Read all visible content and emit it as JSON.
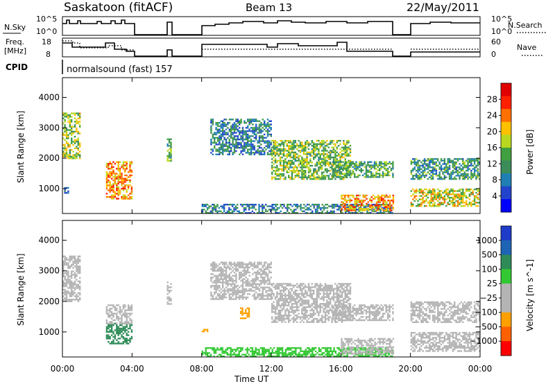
{
  "header": {
    "station": "Saskatoon (fitACF)",
    "beam": "Beam 13",
    "date": "22/May/2011"
  },
  "status_panels": {
    "nsky_label": "N.Sky",
    "nsky_ticks": [
      "10^5",
      "10^0"
    ],
    "nsearch_label": "N.Search",
    "nsearch_ticks": [
      "10^5",
      "10^0"
    ],
    "freq_label": "Freq.",
    "freq_unit": "[MHz]",
    "freq_ticks": [
      "18",
      "8"
    ],
    "nave_label": "Nave",
    "nave_ticks": [
      "60",
      "0"
    ],
    "cpid_label": "CPID",
    "cpid_value": "normalsound (fast) 157"
  },
  "colors": {
    "power_scale": [
      "#0000ff",
      "#2244cc",
      "#1f7fb4",
      "#3c8c5a",
      "#40a040",
      "#b8d820",
      "#ffc000",
      "#ff7000",
      "#ff2000",
      "#e00000"
    ],
    "velocity_scale": [
      "#1e3cc8",
      "#1e64b4",
      "#2e8b57",
      "#32c832",
      "#b4b4b4",
      "#b4b4b4",
      "#ffa000",
      "#ff6000",
      "#ff0000"
    ]
  },
  "chart_data": [
    {
      "type": "heatmap",
      "title": "",
      "quantity": "Power",
      "xlabel": "",
      "ylabel": "Slant Range [km]",
      "xlim_hours": [
        0,
        24
      ],
      "ylim": [
        180,
        4650
      ],
      "x_ticks": [
        "00:00",
        "04:00",
        "08:00",
        "12:00",
        "16:00",
        "20:00",
        "00:00"
      ],
      "y_ticks": [
        1000,
        2000,
        3000,
        4000
      ],
      "colorbar": {
        "label": "Power [dB]",
        "ticks": [
          "28",
          "24",
          "20",
          "16",
          "12",
          "8",
          "4"
        ],
        "range": [
          0,
          30
        ]
      },
      "echo_regions": [
        {
          "t_start": 0.0,
          "t_end": 1.0,
          "r_min": 2000,
          "r_max": 3500,
          "power": 16
        },
        {
          "t_start": 0.0,
          "t_end": 0.3,
          "r_min": 850,
          "r_max": 1050,
          "power": 6
        },
        {
          "t_start": 2.5,
          "t_end": 4.0,
          "r_min": 650,
          "r_max": 1900,
          "power": 22
        },
        {
          "t_start": 6.0,
          "t_end": 6.2,
          "r_min": 1900,
          "r_max": 2650,
          "power": 12
        },
        {
          "t_start": 8.0,
          "t_end": 19.0,
          "r_min": 200,
          "r_max": 500,
          "power": 8
        },
        {
          "t_start": 8.5,
          "t_end": 12.0,
          "r_min": 2100,
          "r_max": 3300,
          "power": 8
        },
        {
          "t_start": 12.0,
          "t_end": 16.5,
          "r_min": 1300,
          "r_max": 2600,
          "power": 14
        },
        {
          "t_start": 16.0,
          "t_end": 19.0,
          "r_min": 300,
          "r_max": 800,
          "power": 22
        },
        {
          "t_start": 15.5,
          "t_end": 19.0,
          "r_min": 1400,
          "r_max": 1900,
          "power": 12
        },
        {
          "t_start": 20.0,
          "t_end": 24.0,
          "r_min": 1300,
          "r_max": 2000,
          "power": 10
        },
        {
          "t_start": 20.0,
          "t_end": 24.0,
          "r_min": 400,
          "r_max": 1000,
          "power": 18
        }
      ]
    },
    {
      "type": "heatmap",
      "title": "",
      "quantity": "Velocity",
      "xlabel": "Time UT",
      "ylabel": "Slant Range [km]",
      "xlim_hours": [
        0,
        24
      ],
      "ylim": [
        180,
        4650
      ],
      "x_ticks": [
        "00:00",
        "04:00",
        "08:00",
        "12:00",
        "16:00",
        "20:00",
        "00:00"
      ],
      "y_ticks": [
        1000,
        2000,
        3000,
        4000
      ],
      "colorbar": {
        "label": "Velocity [m s^-1]",
        "ticks": [
          "1000",
          "500",
          "100",
          "25",
          "−25",
          "−100",
          "−500",
          "−1000"
        ]
      },
      "echo_regions": [
        {
          "t_start": 0.0,
          "t_end": 1.0,
          "r_min": 2000,
          "r_max": 3500,
          "velocity": 0
        },
        {
          "t_start": 2.5,
          "t_end": 4.0,
          "r_min": 600,
          "r_max": 1300,
          "velocity": 300
        },
        {
          "t_start": 2.5,
          "t_end": 4.0,
          "r_min": 1300,
          "r_max": 1900,
          "velocity": -40
        },
        {
          "t_start": 6.0,
          "t_end": 6.2,
          "r_min": 1900,
          "r_max": 2650,
          "velocity": 0
        },
        {
          "t_start": 8.0,
          "t_end": 8.3,
          "r_min": 1000,
          "r_max": 1100,
          "velocity": -400
        },
        {
          "t_start": 10.2,
          "t_end": 10.7,
          "r_min": 1450,
          "r_max": 1800,
          "velocity": -400
        },
        {
          "t_start": 8.0,
          "t_end": 19.0,
          "r_min": 200,
          "r_max": 500,
          "velocity": 60
        },
        {
          "t_start": 8.5,
          "t_end": 12.0,
          "r_min": 2100,
          "r_max": 3300,
          "velocity": 0
        },
        {
          "t_start": 12.0,
          "t_end": 16.5,
          "r_min": 1300,
          "r_max": 2600,
          "velocity": 0
        },
        {
          "t_start": 16.0,
          "t_end": 19.0,
          "r_min": 300,
          "r_max": 800,
          "velocity": 0
        },
        {
          "t_start": 15.5,
          "t_end": 19.0,
          "r_min": 1400,
          "r_max": 1900,
          "velocity": 0
        },
        {
          "t_start": 20.0,
          "t_end": 24.0,
          "r_min": 1300,
          "r_max": 2000,
          "velocity": 0
        },
        {
          "t_start": 20.0,
          "t_end": 24.0,
          "r_min": 400,
          "r_max": 1000,
          "velocity": 0
        }
      ]
    }
  ]
}
